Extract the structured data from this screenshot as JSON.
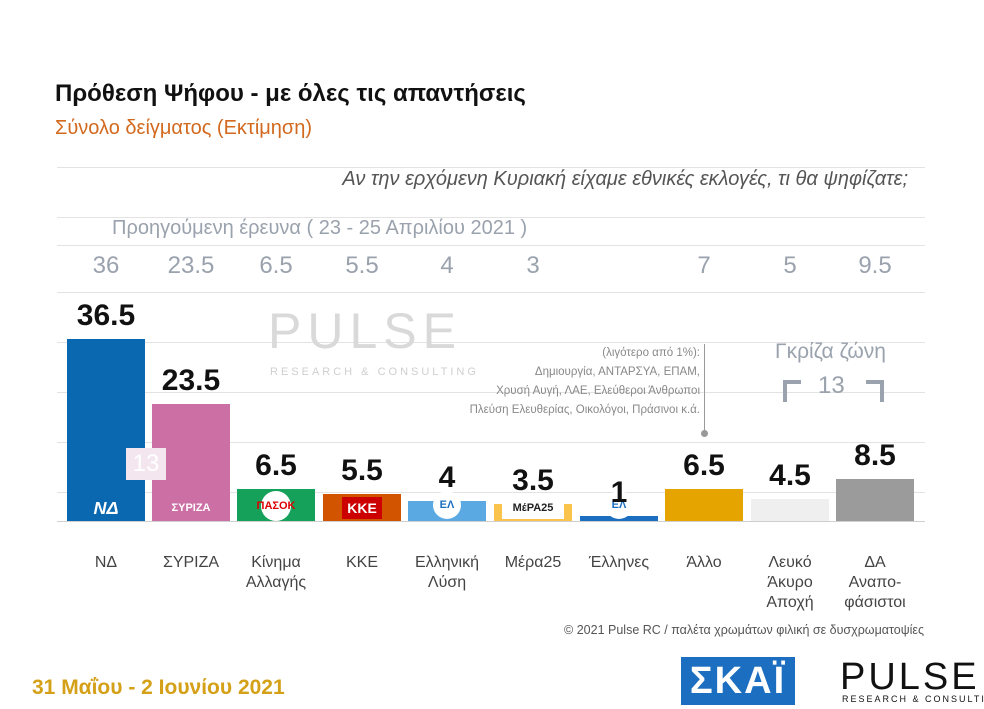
{
  "header": {
    "title": "Πρόθεση Ψήφου - με όλες τις απαντήσεις",
    "subtitle": "Σύνολο δείγματος   (Εκτίμηση)",
    "question": "Αν την ερχόμενη Κυριακή είχαμε εθνικές εκλογές, τι θα ψηφίζατε;"
  },
  "previous": {
    "title": "Προηγούμενη έρευνα  ( 23 - 25 Απριλίου 2021 )",
    "values": [
      "36",
      "23.5",
      "6.5",
      "5.5",
      "4",
      "3",
      "",
      "7",
      "5",
      "9.5"
    ],
    "gray_zone_prev": "13"
  },
  "watermark": {
    "main": "PULSE",
    "sub": "RESEARCH & CONSULTING"
  },
  "other_note": [
    "(λιγότερο από 1%):",
    "Δημιουργία, ΑΝΤΑΡΣΥΑ, ΕΠΑΜ,",
    "Χρυσή Αυγή, ΛΑΕ, Ελεύθεροι Άνθρωποι",
    "Πλεύση Ελευθερίας, Οικολόγοι, Πράσινοι κ.ά."
  ],
  "gray_zone": {
    "title": "Γκρίζα ζώνη",
    "value": "13"
  },
  "chart_data": {
    "type": "bar",
    "categories": [
      "ΝΔ",
      "ΣΥΡΙΖΑ",
      "Κίνημα Αλλαγής",
      "ΚΚΕ",
      "Ελληνική Λύση",
      "Μέρα25",
      "Έλληνες",
      "Άλλο",
      "Λευκό Άκυρο Αποχή",
      "ΔΑ Αναπο-φάσιστοι"
    ],
    "category_lines": [
      [
        "ΝΔ"
      ],
      [
        "ΣΥΡΙΖΑ"
      ],
      [
        "Κίνημα",
        "Αλλαγής"
      ],
      [
        "ΚΚΕ"
      ],
      [
        "Ελληνική",
        "Λύση"
      ],
      [
        "Μέρα25"
      ],
      [
        "Έλληνες"
      ],
      [
        "Άλλο"
      ],
      [
        "Λευκό",
        "Άκυρο",
        "Αποχή"
      ],
      [
        "ΔΑ",
        "Αναπο-",
        "φάσιστοι"
      ]
    ],
    "values": [
      36.5,
      23.5,
      6.5,
      5.5,
      4,
      3.5,
      1,
      6.5,
      4.5,
      8.5
    ],
    "value_labels": [
      "36.5",
      "23.5",
      "6.5",
      "5.5",
      "4",
      "3.5",
      "1",
      "6.5",
      "4.5",
      "8.5"
    ],
    "colors": [
      "#0a68b0",
      "#cc6fa4",
      "#15a15a",
      "#d35400",
      "#5aa9e2",
      "#f9c34c",
      "#1c6fc0",
      "#e6a400",
      "#efefef",
      "#9b9b9b"
    ],
    "logos": [
      "ΝΔ",
      "ΣΥΡΙΖΑ",
      "ΠΑΣΟΚ",
      "ΚΚΕ",
      "ΕΛ",
      "ΜέΡΑ25",
      "ΕΛ",
      "",
      "",
      ""
    ],
    "ylim": [
      0,
      40
    ]
  },
  "footer": {
    "copyright": "© 2021 Pulse RC   /   παλέτα χρωμάτων φιλική σε δυσχρωματοψίες",
    "date": "31 Μαΐου - 2 Ιουνίου 2021",
    "skai": "ΣΚΑΪ",
    "pulse": "PULSE",
    "pulse_sub": "RESEARCH & CONSULTING"
  }
}
